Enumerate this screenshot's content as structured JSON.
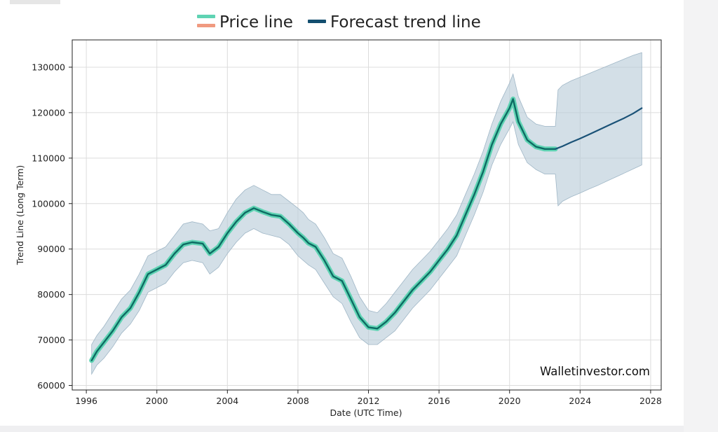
{
  "chart_data": {
    "type": "line",
    "title": "",
    "xlabel": "Date (UTC Time)",
    "ylabel": "Trend Line (Long Term)",
    "xlim": [
      1995.2,
      2028.6
    ],
    "ylim": [
      59000,
      136000
    ],
    "x_ticks": [
      "1996",
      "2000",
      "2004",
      "2008",
      "2012",
      "2016",
      "2020",
      "2024",
      "2028"
    ],
    "y_ticks": [
      "60000",
      "70000",
      "80000",
      "90000",
      "100000",
      "110000",
      "120000",
      "130000"
    ],
    "grid": true,
    "legend": {
      "placement": "top-center",
      "entries": [
        {
          "label": "Price line",
          "colors": [
            "#5fd3b3",
            "#f09a80"
          ]
        },
        {
          "label": "Forecast trend line",
          "colors": [
            "#134e6f"
          ]
        }
      ]
    },
    "watermark": "Walletinvestor.com",
    "colors": {
      "price_line": "#5fd3b3",
      "price_line_core": "#0d6b63",
      "forecast_line": "#1a5277",
      "band_fill": "#b8cbd8",
      "grid": "#dcdcdc"
    },
    "series": [
      {
        "name": "Price line",
        "x": [
          1996.3,
          1996.6,
          1997.0,
          1997.5,
          1998.0,
          1998.5,
          1999.0,
          1999.5,
          2000.0,
          2000.5,
          2001.0,
          2001.5,
          2002.0,
          2002.6,
          2003.0,
          2003.5,
          2004.0,
          2004.5,
          2005.0,
          2005.5,
          2006.0,
          2006.5,
          2007.0,
          2007.5,
          2008.0,
          2008.3,
          2008.6,
          2009.0,
          2009.5,
          2010.0,
          2010.5,
          2011.0,
          2011.5,
          2012.0,
          2012.5,
          2013.0,
          2013.5,
          2014.0,
          2014.5,
          2015.0,
          2015.5,
          2016.0,
          2016.5,
          2017.0,
          2017.5,
          2018.0,
          2018.5,
          2019.0,
          2019.5,
          2020.0,
          2020.2,
          2020.5,
          2021.0,
          2021.5,
          2022.0,
          2022.6
        ],
        "values": [
          65500,
          67500,
          69500,
          72000,
          75000,
          77000,
          80500,
          84500,
          85500,
          86500,
          89000,
          91000,
          91500,
          91200,
          89000,
          90500,
          93500,
          96000,
          98000,
          99000,
          98200,
          97500,
          97200,
          95500,
          93500,
          92500,
          91300,
          90500,
          87500,
          84000,
          83000,
          79000,
          75000,
          72800,
          72500,
          74000,
          76000,
          78500,
          81000,
          83000,
          85000,
          87500,
          90000,
          93000,
          97500,
          102000,
          107000,
          113000,
          117500,
          121000,
          123000,
          118000,
          114000,
          112500,
          112000,
          112000
        ]
      },
      {
        "name": "Forecast trend line",
        "x": [
          2022.6,
          2023.0,
          2023.5,
          2024.0,
          2024.5,
          2025.0,
          2025.5,
          2026.0,
          2026.5,
          2027.0,
          2027.5
        ],
        "values": [
          112000,
          112600,
          113500,
          114300,
          115200,
          116100,
          117000,
          117900,
          118800,
          119800,
          121000
        ]
      }
    ],
    "band": {
      "x": [
        1996.3,
        1996.6,
        1997.0,
        1997.5,
        1998.0,
        1998.5,
        1999.0,
        1999.5,
        2000.0,
        2000.5,
        2001.0,
        2001.5,
        2002.0,
        2002.6,
        2003.0,
        2003.5,
        2004.0,
        2004.5,
        2005.0,
        2005.5,
        2006.0,
        2006.5,
        2007.0,
        2007.5,
        2008.0,
        2008.3,
        2008.6,
        2009.0,
        2009.5,
        2010.0,
        2010.5,
        2011.0,
        2011.5,
        2012.0,
        2012.5,
        2013.0,
        2013.5,
        2014.0,
        2014.5,
        2015.0,
        2015.5,
        2016.0,
        2016.5,
        2017.0,
        2017.5,
        2018.0,
        2018.5,
        2019.0,
        2019.5,
        2020.0,
        2020.2,
        2020.5,
        2021.0,
        2021.5,
        2022.0,
        2022.6,
        2022.75,
        2023.0,
        2023.5,
        2024.0,
        2024.5,
        2025.0,
        2025.5,
        2026.0,
        2026.5,
        2027.0,
        2027.5
      ],
      "upper": [
        69000,
        71000,
        73000,
        76000,
        79000,
        81000,
        84500,
        88500,
        89500,
        90500,
        93000,
        95500,
        96000,
        95500,
        94000,
        94500,
        98000,
        101000,
        103000,
        104000,
        103000,
        102000,
        102000,
        100500,
        99000,
        98000,
        96500,
        95500,
        92500,
        89000,
        88000,
        84000,
        79500,
        76500,
        76000,
        78000,
        80500,
        83000,
        85500,
        87500,
        89500,
        92000,
        94500,
        97500,
        102000,
        106500,
        111500,
        117500,
        122500,
        126500,
        128500,
        123500,
        119000,
        117500,
        117000,
        117000,
        125000,
        126000,
        127000,
        127800,
        128600,
        129400,
        130200,
        131000,
        131800,
        132600,
        133200
      ],
      "lower": [
        62500,
        64500,
        66000,
        68500,
        71500,
        73500,
        76500,
        80500,
        81500,
        82500,
        85000,
        87000,
        87500,
        87000,
        84500,
        86000,
        89000,
        91500,
        93500,
        94500,
        93500,
        93000,
        92500,
        91000,
        88500,
        87500,
        86500,
        85500,
        82500,
        79500,
        78000,
        74000,
        70500,
        69000,
        69000,
        70500,
        72000,
        74500,
        77000,
        79000,
        81000,
        83500,
        86000,
        88500,
        93000,
        97500,
        102500,
        108500,
        113000,
        116500,
        118000,
        113000,
        109000,
        107500,
        106500,
        106500,
        99500,
        100500,
        101500,
        102300,
        103200,
        104000,
        104900,
        105800,
        106700,
        107600,
        108500
      ]
    }
  }
}
